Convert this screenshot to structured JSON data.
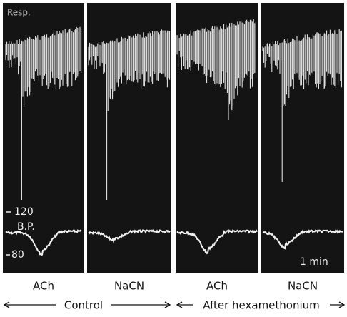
{
  "figure": {
    "resp_label": "Resp.",
    "bp_label": "B.P.",
    "bp_high": "120",
    "bp_low": "80",
    "time_scale": "1 min",
    "panels": [
      {
        "label": "ACh"
      },
      {
        "label": "NaCN"
      },
      {
        "label": "ACh"
      },
      {
        "label": "NaCN"
      }
    ],
    "groups": [
      {
        "label": "Control"
      },
      {
        "label": "After hexamethonium"
      }
    ]
  }
}
